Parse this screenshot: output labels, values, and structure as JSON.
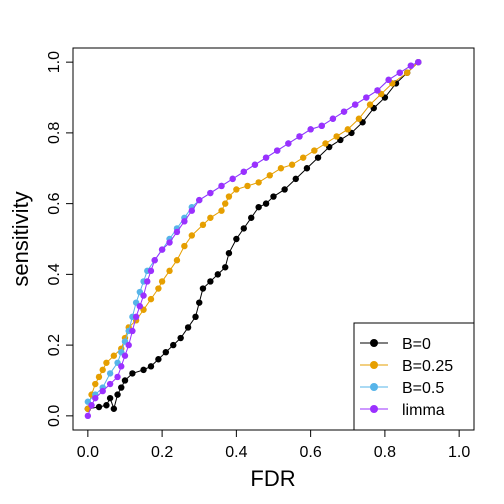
{
  "chart_data": {
    "type": "line",
    "title": "",
    "xlabel": "FDR",
    "ylabel": "sensitivity",
    "xlim": [
      -0.04,
      1.04
    ],
    "ylim": [
      -0.04,
      1.04
    ],
    "x_ticks": [
      0.0,
      0.2,
      0.4,
      0.6,
      0.8,
      1.0
    ],
    "x_tick_labels": [
      "0.0",
      "0.2",
      "0.4",
      "0.6",
      "0.8",
      "1.0"
    ],
    "y_ticks": [
      0.0,
      0.2,
      0.4,
      0.6,
      0.8,
      1.0
    ],
    "y_tick_labels": [
      "0.0",
      "0.2",
      "0.4",
      "0.6",
      "0.8",
      "1.0"
    ],
    "grid": false,
    "legend_position": "bottom-right",
    "series": [
      {
        "name": "B=0",
        "color": "#000000",
        "points": [
          [
            0.0,
            0.02
          ],
          [
            0.03,
            0.025
          ],
          [
            0.05,
            0.03
          ],
          [
            0.06,
            0.05
          ],
          [
            0.07,
            0.02
          ],
          [
            0.08,
            0.06
          ],
          [
            0.09,
            0.08
          ],
          [
            0.1,
            0.1
          ],
          [
            0.12,
            0.12
          ],
          [
            0.15,
            0.13
          ],
          [
            0.17,
            0.14
          ],
          [
            0.19,
            0.16
          ],
          [
            0.21,
            0.18
          ],
          [
            0.23,
            0.2
          ],
          [
            0.25,
            0.22
          ],
          [
            0.27,
            0.25
          ],
          [
            0.29,
            0.28
          ],
          [
            0.3,
            0.32
          ],
          [
            0.31,
            0.36
          ],
          [
            0.33,
            0.38
          ],
          [
            0.35,
            0.4
          ],
          [
            0.37,
            0.42
          ],
          [
            0.38,
            0.46
          ],
          [
            0.4,
            0.5
          ],
          [
            0.42,
            0.53
          ],
          [
            0.44,
            0.56
          ],
          [
            0.46,
            0.59
          ],
          [
            0.48,
            0.6
          ],
          [
            0.5,
            0.62
          ],
          [
            0.53,
            0.64
          ],
          [
            0.56,
            0.67
          ],
          [
            0.59,
            0.7
          ],
          [
            0.62,
            0.73
          ],
          [
            0.65,
            0.76
          ],
          [
            0.68,
            0.78
          ],
          [
            0.71,
            0.8
          ],
          [
            0.74,
            0.83
          ],
          [
            0.77,
            0.87
          ],
          [
            0.8,
            0.9
          ],
          [
            0.83,
            0.94
          ],
          [
            0.86,
            0.97
          ],
          [
            0.89,
            1.0
          ]
        ]
      },
      {
        "name": "B=0.25",
        "color": "#E69F00",
        "points": [
          [
            0.0,
            0.02
          ],
          [
            0.01,
            0.06
          ],
          [
            0.02,
            0.09
          ],
          [
            0.03,
            0.11
          ],
          [
            0.04,
            0.13
          ],
          [
            0.05,
            0.15
          ],
          [
            0.07,
            0.17
          ],
          [
            0.09,
            0.19
          ],
          [
            0.1,
            0.22
          ],
          [
            0.11,
            0.25
          ],
          [
            0.13,
            0.27
          ],
          [
            0.15,
            0.3
          ],
          [
            0.17,
            0.33
          ],
          [
            0.19,
            0.36
          ],
          [
            0.2,
            0.38
          ],
          [
            0.22,
            0.41
          ],
          [
            0.24,
            0.44
          ],
          [
            0.26,
            0.48
          ],
          [
            0.28,
            0.51
          ],
          [
            0.31,
            0.54
          ],
          [
            0.33,
            0.56
          ],
          [
            0.36,
            0.58
          ],
          [
            0.37,
            0.6
          ],
          [
            0.38,
            0.62
          ],
          [
            0.4,
            0.64
          ],
          [
            0.43,
            0.65
          ],
          [
            0.46,
            0.66
          ],
          [
            0.49,
            0.68
          ],
          [
            0.52,
            0.7
          ],
          [
            0.55,
            0.71
          ],
          [
            0.58,
            0.73
          ],
          [
            0.61,
            0.75
          ],
          [
            0.64,
            0.77
          ],
          [
            0.67,
            0.79
          ],
          [
            0.7,
            0.81
          ],
          [
            0.73,
            0.84
          ],
          [
            0.76,
            0.88
          ],
          [
            0.79,
            0.91
          ],
          [
            0.82,
            0.94
          ],
          [
            0.86,
            0.97
          ],
          [
            0.89,
            1.0
          ]
        ]
      },
      {
        "name": "B=0.5",
        "color": "#56B4E9",
        "points": [
          [
            0.0,
            0.04
          ],
          [
            0.02,
            0.06
          ],
          [
            0.04,
            0.08
          ],
          [
            0.06,
            0.12
          ],
          [
            0.08,
            0.15
          ],
          [
            0.09,
            0.18
          ],
          [
            0.1,
            0.21
          ],
          [
            0.11,
            0.24
          ],
          [
            0.12,
            0.28
          ],
          [
            0.13,
            0.32
          ],
          [
            0.14,
            0.35
          ],
          [
            0.15,
            0.38
          ],
          [
            0.16,
            0.41
          ],
          [
            0.18,
            0.44
          ],
          [
            0.2,
            0.47
          ],
          [
            0.22,
            0.5
          ],
          [
            0.24,
            0.53
          ],
          [
            0.26,
            0.56
          ],
          [
            0.28,
            0.59
          ],
          [
            0.3,
            0.61
          ],
          [
            0.33,
            0.63
          ],
          [
            0.36,
            0.65
          ],
          [
            0.39,
            0.67
          ],
          [
            0.42,
            0.69
          ],
          [
            0.45,
            0.71
          ],
          [
            0.48,
            0.73
          ],
          [
            0.51,
            0.75
          ],
          [
            0.54,
            0.77
          ],
          [
            0.57,
            0.79
          ],
          [
            0.6,
            0.81
          ],
          [
            0.63,
            0.82
          ],
          [
            0.66,
            0.84
          ],
          [
            0.69,
            0.86
          ],
          [
            0.72,
            0.88
          ],
          [
            0.75,
            0.9
          ],
          [
            0.78,
            0.92
          ],
          [
            0.81,
            0.95
          ],
          [
            0.84,
            0.97
          ],
          [
            0.87,
            0.99
          ],
          [
            0.89,
            1.0
          ]
        ]
      },
      {
        "name": "limma",
        "color": "#9B30FF",
        "points": [
          [
            0.0,
            0.0
          ],
          [
            0.01,
            0.03
          ],
          [
            0.02,
            0.05
          ],
          [
            0.04,
            0.07
          ],
          [
            0.06,
            0.09
          ],
          [
            0.08,
            0.11
          ],
          [
            0.09,
            0.14
          ],
          [
            0.1,
            0.17
          ],
          [
            0.11,
            0.2
          ],
          [
            0.12,
            0.24
          ],
          [
            0.13,
            0.28
          ],
          [
            0.14,
            0.31
          ],
          [
            0.15,
            0.34
          ],
          [
            0.16,
            0.38
          ],
          [
            0.17,
            0.41
          ],
          [
            0.18,
            0.44
          ],
          [
            0.2,
            0.47
          ],
          [
            0.22,
            0.49
          ],
          [
            0.24,
            0.52
          ],
          [
            0.26,
            0.55
          ],
          [
            0.28,
            0.58
          ],
          [
            0.3,
            0.61
          ],
          [
            0.33,
            0.63
          ],
          [
            0.36,
            0.65
          ],
          [
            0.39,
            0.67
          ],
          [
            0.42,
            0.69
          ],
          [
            0.45,
            0.71
          ],
          [
            0.48,
            0.73
          ],
          [
            0.51,
            0.75
          ],
          [
            0.54,
            0.77
          ],
          [
            0.57,
            0.79
          ],
          [
            0.6,
            0.81
          ],
          [
            0.63,
            0.82
          ],
          [
            0.66,
            0.84
          ],
          [
            0.69,
            0.86
          ],
          [
            0.72,
            0.88
          ],
          [
            0.75,
            0.9
          ],
          [
            0.78,
            0.92
          ],
          [
            0.81,
            0.95
          ],
          [
            0.84,
            0.97
          ],
          [
            0.87,
            0.99
          ],
          [
            0.89,
            1.0
          ]
        ]
      }
    ]
  }
}
